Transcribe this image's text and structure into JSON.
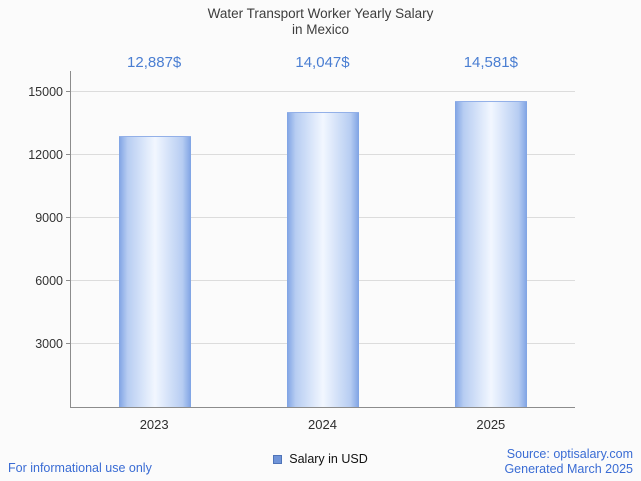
{
  "title": {
    "line1": "Water Transport Worker Yearly Salary",
    "line2": "in Mexico"
  },
  "chart_data": {
    "type": "bar",
    "title": "Water Transport Worker Yearly Salary in Mexico",
    "categories": [
      "2023",
      "2024",
      "2025"
    ],
    "values": [
      12887,
      14047,
      14581
    ],
    "value_labels": [
      "12,887$",
      "14,047$",
      "14,581$"
    ],
    "series_name": "Salary in USD",
    "xlabel": "",
    "ylabel": "",
    "ylim": [
      0,
      16000
    ],
    "yticks": [
      3000,
      6000,
      9000,
      12000,
      15000
    ],
    "grid": true,
    "legend_position": "bottom",
    "bar_edge_color": "#7fa3e4",
    "bar_mid_color": "#b7cdf2",
    "bar_center_color": "#f2f7ff"
  },
  "legend": {
    "label": "Salary in USD",
    "swatch_color": "#7094d8",
    "swatch_border": "#4f74b8"
  },
  "footer": {
    "note": "For informational use only",
    "source": "Source: optisalary.com",
    "generated": "Generated March 2025"
  },
  "colors": {
    "accent": "#4a7ed2",
    "link": "#3a6cd4",
    "title_text": "#3d3d3d"
  }
}
